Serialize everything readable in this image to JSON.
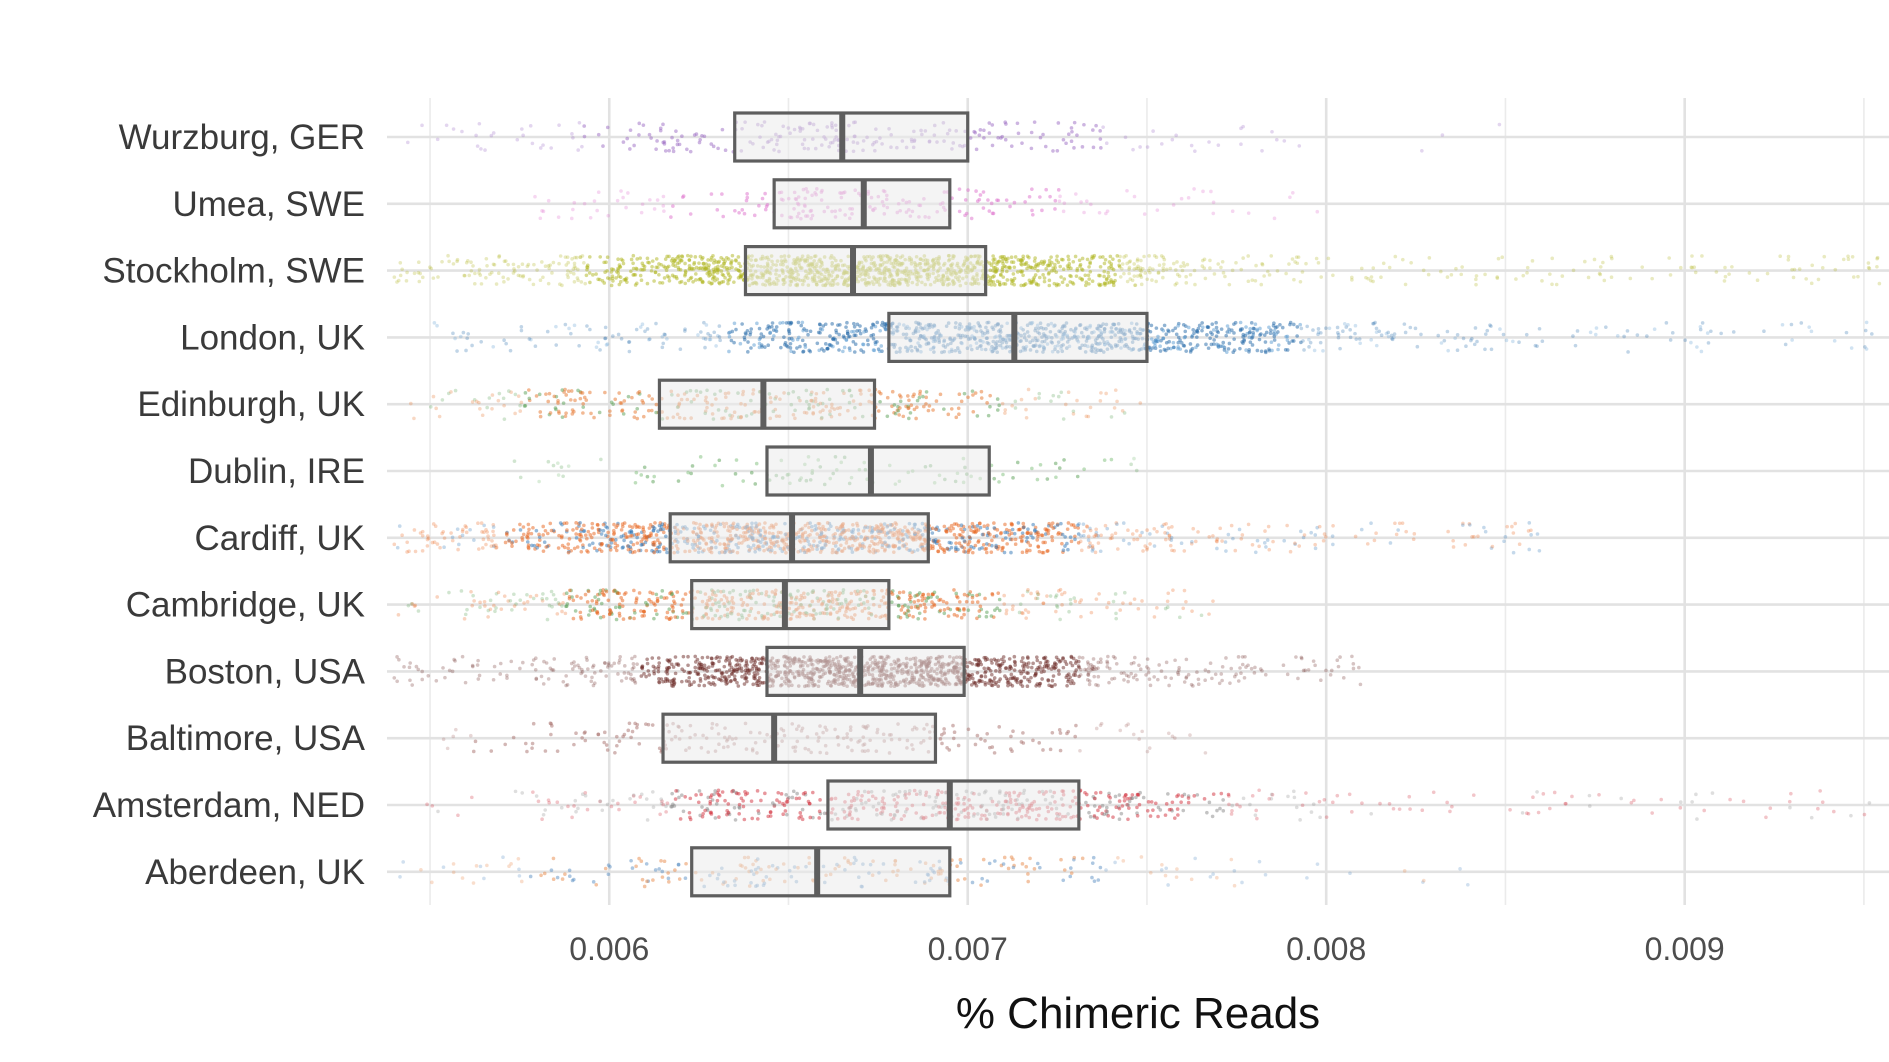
{
  "chart_data": {
    "type": "boxplot-jitter",
    "orientation": "horizontal",
    "xlabel": "% Chimeric Reads",
    "ylabel": "",
    "title": "",
    "xlim": [
      0.00538,
      0.00957
    ],
    "x_ticks": [
      0.006,
      0.007,
      0.008,
      0.009
    ],
    "x_tick_labels": [
      "0.006",
      "0.007",
      "0.008",
      "0.009"
    ],
    "x_minor_ticks": [
      0.0055,
      0.0065,
      0.0075,
      0.0085,
      0.0095
    ],
    "grid": true,
    "categories": [
      {
        "label": "Wurzburg, GER",
        "q1": 0.00635,
        "median": 0.00665,
        "q3": 0.007,
        "min": 0.0054,
        "max": 0.0085,
        "density": 260,
        "colors": [
          "#9b6cc4"
        ]
      },
      {
        "label": "Umea, SWE",
        "q1": 0.00646,
        "median": 0.00671,
        "q3": 0.00695,
        "min": 0.0057,
        "max": 0.008,
        "density": 220,
        "colors": [
          "#de6fcb"
        ]
      },
      {
        "label": "Stockholm, SWE",
        "q1": 0.00638,
        "median": 0.00668,
        "q3": 0.00705,
        "min": 0.0054,
        "max": 0.00955,
        "density": 1500,
        "colors": [
          "#afb51f"
        ]
      },
      {
        "label": "London, UK",
        "q1": 0.00678,
        "median": 0.00713,
        "q3": 0.0075,
        "min": 0.0055,
        "max": 0.00955,
        "density": 1100,
        "colors": [
          "#2167a8",
          "#2167a8",
          "#2167a8",
          "#5a9bd1"
        ]
      },
      {
        "label": "Edinburgh, UK",
        "q1": 0.00614,
        "median": 0.00643,
        "q3": 0.00674,
        "min": 0.0054,
        "max": 0.0075,
        "density": 380,
        "colors": [
          "#e6732a",
          "#e6732a",
          "#5aa055"
        ]
      },
      {
        "label": "Dublin, IRE",
        "q1": 0.00644,
        "median": 0.00673,
        "q3": 0.00706,
        "min": 0.0057,
        "max": 0.0075,
        "density": 110,
        "colors": [
          "#7fbf7b",
          "#5aa055"
        ]
      },
      {
        "label": "Cardiff, UK",
        "q1": 0.00617,
        "median": 0.00651,
        "q3": 0.00689,
        "min": 0.0054,
        "max": 0.0086,
        "density": 1400,
        "colors": [
          "#e8641c",
          "#e8641c",
          "#2f76b6"
        ]
      },
      {
        "label": "Cambridge, UK",
        "q1": 0.00623,
        "median": 0.00649,
        "q3": 0.00678,
        "min": 0.0054,
        "max": 0.0077,
        "density": 700,
        "colors": [
          "#e8641c",
          "#e8641c",
          "#5aa055"
        ]
      },
      {
        "label": "Boston, USA",
        "q1": 0.00644,
        "median": 0.0067,
        "q3": 0.00699,
        "min": 0.0054,
        "max": 0.0081,
        "density": 1300,
        "colors": [
          "#6b2a26"
        ]
      },
      {
        "label": "Baltimore, USA",
        "q1": 0.00615,
        "median": 0.00646,
        "q3": 0.00691,
        "min": 0.0055,
        "max": 0.0077,
        "density": 260,
        "colors": [
          "#a8706c"
        ]
      },
      {
        "label": "Amsterdam, NED",
        "q1": 0.00661,
        "median": 0.00695,
        "q3": 0.00731,
        "min": 0.0054,
        "max": 0.00955,
        "density": 650,
        "colors": [
          "#d12f3c",
          "#d12f3c",
          "#888888"
        ]
      },
      {
        "label": "Aberdeen, UK",
        "q1": 0.00623,
        "median": 0.00658,
        "q3": 0.00695,
        "min": 0.0054,
        "max": 0.0084,
        "density": 260,
        "colors": [
          "#e88a4a",
          "#5b8fc4"
        ]
      }
    ]
  }
}
